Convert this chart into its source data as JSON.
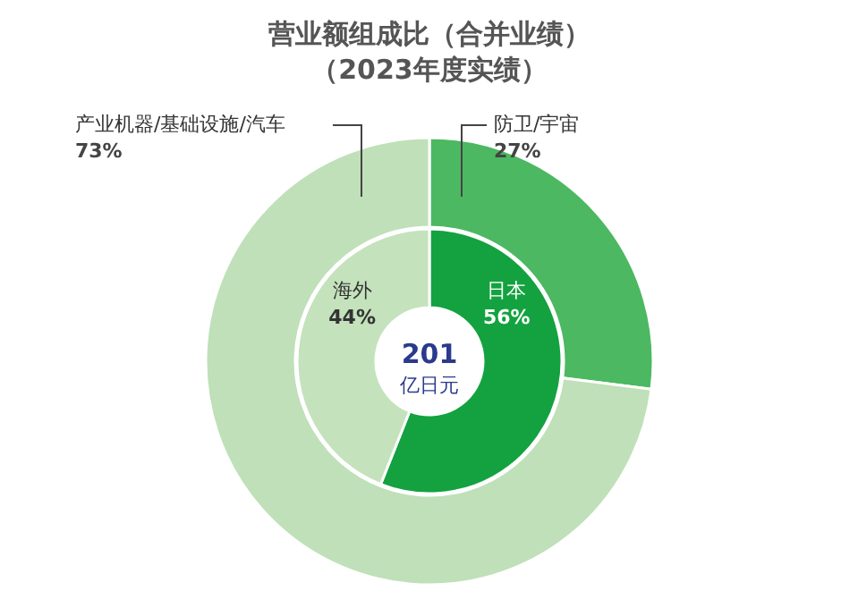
{
  "chart_data": [
    {
      "type": "donut",
      "title": "营业额组成比（合并业绩）",
      "subtitle": "（2023年度实绩）",
      "categories": [
        "防卫/宇宙",
        "产业机器/基础设施/汽车"
      ],
      "values": [
        27,
        73
      ],
      "colors": [
        "#4cb862",
        "#bfe0b8"
      ],
      "value_labels": [
        "27%",
        "73%"
      ]
    },
    {
      "type": "donut",
      "categories": [
        "日本",
        "海外"
      ],
      "values": [
        56,
        44
      ],
      "colors": [
        "#13a23f",
        "#c4e2bc"
      ],
      "value_labels": [
        "56%",
        "44%"
      ],
      "annotations": [
        "201",
        "亿日元"
      ]
    }
  ]
}
